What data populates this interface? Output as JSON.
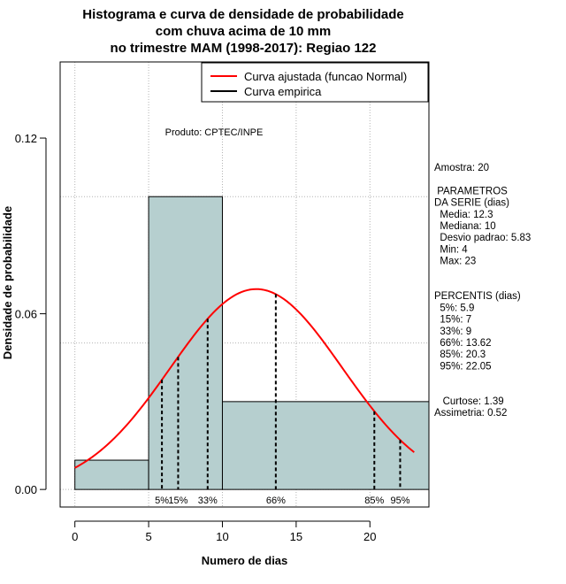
{
  "chart_data": {
    "type": "bar",
    "title": [
      "Histograma e curva de densidade de probabilidade",
      "com chuva acima de 10 mm",
      "no trimestre MAM (1998-2017): Regiao 122"
    ],
    "xlabel": "Numero de dias",
    "ylabel": "Densidade de probabilidade",
    "xlim": [
      -1,
      24
    ],
    "ylim": [
      -0.006,
      0.146
    ],
    "x_ticks": [
      0,
      5,
      10,
      15,
      20
    ],
    "x_tick_labels": [
      "0",
      "5",
      "10",
      "15",
      "20"
    ],
    "y_ticks": [
      0.0,
      0.06,
      0.12
    ],
    "y_tick_labels": [
      "0.00",
      "0.06",
      "0.12"
    ],
    "grid_x": [
      0,
      5,
      10,
      15,
      20
    ],
    "grid_y": [
      0.0,
      0.05,
      0.1
    ],
    "bins": [
      {
        "x0": 0,
        "x1": 5,
        "density": 0.01
      },
      {
        "x0": 5,
        "x1": 10,
        "density": 0.1
      },
      {
        "x0": 10,
        "x1": 24,
        "density": 0.03
      }
    ],
    "normal_curve": {
      "mean": 12.3,
      "sd": 5.83,
      "x_from": 0,
      "x_to": 23,
      "color": "#ff0000",
      "label": "Curva ajustada (funcao Normal)"
    },
    "empirical_label": "Curva empirica",
    "empirical_color": "#000000",
    "bar_fill": "#b6cfcf",
    "percentile_marks": [
      {
        "label": "5%",
        "x": 5.9
      },
      {
        "label": "15%",
        "x": 7
      },
      {
        "label": "33%",
        "x": 9
      },
      {
        "label": "66%",
        "x": 13.62
      },
      {
        "label": "85%",
        "x": 20.3
      },
      {
        "label": "95%",
        "x": 22.05
      }
    ],
    "annotation": "Produto: CPTEC/INPE",
    "legend_position": "top-right"
  },
  "side_panel": [
    "Amostra: 20",
    "",
    " PARAMETROS",
    "DA SERIE (dias)",
    "  Media: 12.3",
    "  Mediana: 10",
    "  Desvio padrao: 5.83",
    "  Min: 4",
    "  Max: 23",
    "",
    "",
    "PERCENTIS (dias)",
    "  5%: 5.9",
    "  15%: 7",
    "  33%: 9",
    "  66%: 13.62",
    "  85%: 20.3",
    "  95%: 22.05",
    "",
    "",
    "   Curtose: 1.39",
    "Assimetria: 0.52"
  ]
}
